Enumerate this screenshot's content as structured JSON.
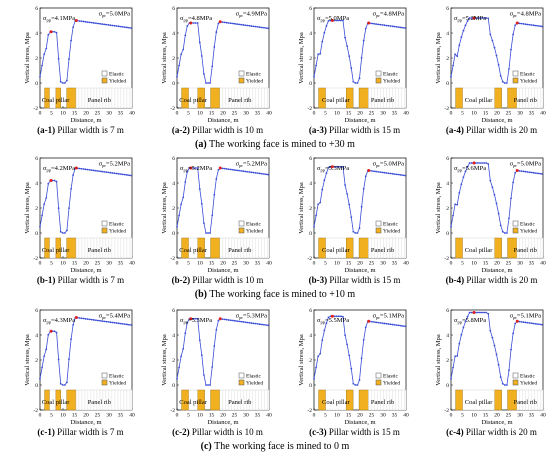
{
  "figure": {
    "rows": [
      {
        "caption_letter": "(a)",
        "caption_text": "The working face is mined to +30 m",
        "panels": [
          {
            "id": "a-1",
            "caption_text": "Pillar width is 7 m",
            "pillar_width": 7,
            "peak1": "σ",
            "peak1_sub": "pp",
            "peak1_value": "=4.1MPa",
            "peak2": "σ",
            "peak2_sub": "pr",
            "peak2_value": "=5.0MPa"
          },
          {
            "id": "a-2",
            "caption_text": "Pillar width is 10 m",
            "pillar_width": 10,
            "peak1": "σ",
            "peak1_sub": "pp",
            "peak1_value": "=4.8MPa",
            "peak2": "σ",
            "peak2_sub": "pr",
            "peak2_value": "=4.9MPa"
          },
          {
            "id": "a-3",
            "caption_text": "Pillar width is 15 m",
            "pillar_width": 15,
            "peak1": "σ",
            "peak1_sub": "pp",
            "peak1_value": "=5.0MPa",
            "peak2": "σ",
            "peak2_sub": "pr",
            "peak2_value": "=4.8MPa"
          },
          {
            "id": "a-4",
            "caption_text": "Pillar width is 20 m",
            "pillar_width": 20,
            "peak1": "σ",
            "peak1_sub": "pp",
            "peak1_value": "=5.2MPa",
            "peak2": "σ",
            "peak2_sub": "pr",
            "peak2_value": "=4.8MPa"
          }
        ]
      },
      {
        "caption_letter": "(b)",
        "caption_text": "The working face is mined to +10 m",
        "panels": [
          {
            "id": "b-1",
            "caption_text": "Pillar width is 7 m",
            "pillar_width": 7,
            "peak1": "σ",
            "peak1_sub": "pp",
            "peak1_value": "=4.2MPa",
            "peak2": "σ",
            "peak2_sub": "pr",
            "peak2_value": "=5.2MPa"
          },
          {
            "id": "b-2",
            "caption_text": "Pillar width is 10 m",
            "pillar_width": 10,
            "peak1": "σ",
            "peak1_sub": "pp",
            "peak1_value": "=5.2MPa",
            "peak2": "σ",
            "peak2_sub": "pr",
            "peak2_value": "=5.2MPa"
          },
          {
            "id": "b-3",
            "caption_text": "Pillar width is 15 m",
            "pillar_width": 15,
            "peak1": "σ",
            "peak1_sub": "pp",
            "peak1_value": "=5.3MPa",
            "peak2": "σ",
            "peak2_sub": "pr",
            "peak2_value": "=5.0MPa"
          },
          {
            "id": "b-4",
            "caption_text": "Pillar width is 20 m",
            "pillar_width": 20,
            "peak1": "σ",
            "peak1_sub": "pp",
            "peak1_value": "=5.6MPa",
            "peak2": "σ",
            "peak2_sub": "pr",
            "peak2_value": "=5.0MPa"
          }
        ]
      },
      {
        "caption_letter": "(c)",
        "caption_text": "The working face is mined to 0 m",
        "panels": [
          {
            "id": "c-1",
            "caption_text": "Pillar width is 7 m",
            "pillar_width": 7,
            "peak1": "σ",
            "peak1_sub": "pp",
            "peak1_value": "=4.3MPa",
            "peak2": "σ",
            "peak2_sub": "pr",
            "peak2_value": "=5.4MPa"
          },
          {
            "id": "c-2",
            "caption_text": "Pillar width is 10 m",
            "pillar_width": 10,
            "peak1": "σ",
            "peak1_sub": "pp",
            "peak1_value": "=5.3MPa",
            "peak2": "σ",
            "peak2_sub": "pr",
            "peak2_value": "=5.3MPa"
          },
          {
            "id": "c-3",
            "caption_text": "Pillar width is 15 m",
            "pillar_width": 15,
            "peak1": "σ",
            "peak1_sub": "pp",
            "peak1_value": "=5.5MPa",
            "peak2": "σ",
            "peak2_sub": "pr",
            "peak2_value": "=5.1MPa"
          },
          {
            "id": "c-4",
            "caption_text": "Pillar width is 20 m",
            "pillar_width": 20,
            "peak1": "σ",
            "peak1_sub": "pp",
            "peak1_value": "=5.8MPa",
            "peak2": "σ",
            "peak2_sub": "pr",
            "peak2_value": "=5.1MPa"
          }
        ]
      }
    ]
  },
  "chart_data": {
    "type": "line",
    "xlabel": "Distance, m",
    "ylabel": "Vertical stress, Mpa",
    "xlim": [
      0,
      40
    ],
    "ylim": [
      -2,
      6
    ],
    "xticks": [
      0,
      5,
      10,
      15,
      20,
      25,
      30,
      35,
      40
    ],
    "yticks": [
      -2,
      0,
      2,
      4,
      6
    ],
    "legend": [
      "Elastic",
      "Yielded"
    ],
    "legend_position": "right-middle",
    "zone_labels": [
      "Coal pillar",
      "Panel rib"
    ],
    "colors": {
      "series": "#3b4fd6",
      "peak": "#e02020",
      "yielded": "#f0b020",
      "elastic": "#ffffff",
      "elastic_grid": "#c8c8c8"
    },
    "series_note": "Each panel: stress profile across coal pillar and panel rib, peaks marked in red",
    "panels": [
      {
        "id": "a-1",
        "pillar_width": 7,
        "peak_pillar": 4.1,
        "peak_rib": 5.0
      },
      {
        "id": "a-2",
        "pillar_width": 10,
        "peak_pillar": 4.8,
        "peak_rib": 4.9
      },
      {
        "id": "a-3",
        "pillar_width": 15,
        "peak_pillar": 5.0,
        "peak_rib": 4.8
      },
      {
        "id": "a-4",
        "pillar_width": 20,
        "peak_pillar": 5.2,
        "peak_rib": 4.8
      },
      {
        "id": "b-1",
        "pillar_width": 7,
        "peak_pillar": 4.2,
        "peak_rib": 5.2
      },
      {
        "id": "b-2",
        "pillar_width": 10,
        "peak_pillar": 5.2,
        "peak_rib": 5.2
      },
      {
        "id": "b-3",
        "pillar_width": 15,
        "peak_pillar": 5.3,
        "peak_rib": 5.0
      },
      {
        "id": "b-4",
        "pillar_width": 20,
        "peak_pillar": 5.6,
        "peak_rib": 5.0
      },
      {
        "id": "c-1",
        "pillar_width": 7,
        "peak_pillar": 4.3,
        "peak_rib": 5.4
      },
      {
        "id": "c-2",
        "pillar_width": 10,
        "peak_pillar": 5.3,
        "peak_rib": 5.3
      },
      {
        "id": "c-3",
        "pillar_width": 15,
        "peak_pillar": 5.5,
        "peak_rib": 5.1
      },
      {
        "id": "c-4",
        "pillar_width": 20,
        "peak_pillar": 5.8,
        "peak_rib": 5.1
      }
    ]
  }
}
